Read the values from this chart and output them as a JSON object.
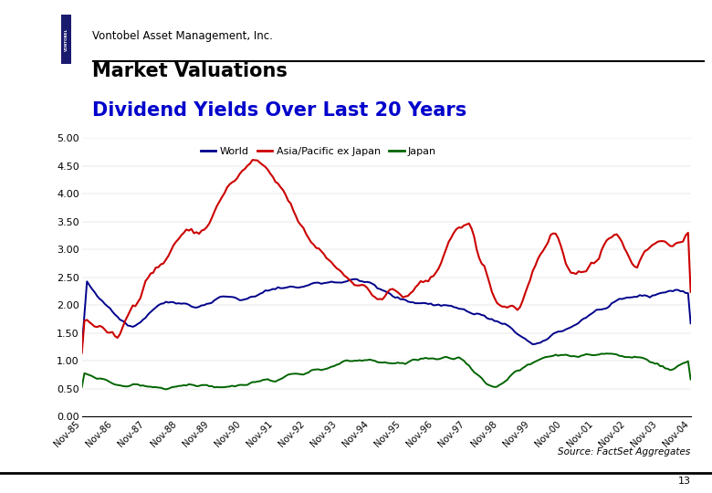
{
  "title_line1": "Market Valuations",
  "title_line2": "Dividend Yields Over Last 20 Years",
  "header_text": "Vontobel Asset Management, Inc.",
  "source_text": "Source: FactSet Aggregates",
  "page_number": "13",
  "legend_labels": [
    "World",
    "Asia/Pacific ex Japan",
    "Japan"
  ],
  "legend_colors": [
    "#00008B",
    "#CC0000",
    "#006400"
  ],
  "line_colors": [
    "#00008B",
    "#CC0000",
    "#006400"
  ],
  "x_labels": [
    "Nov-85",
    "Nov-86",
    "Nov-87",
    "Nov-88",
    "Nov-89",
    "Nov-90",
    "Nov-91",
    "Nov-92",
    "Nov-93",
    "Nov-94",
    "Nov-95",
    "Nov-96",
    "Nov-97",
    "Nov-98",
    "Nov-99",
    "Nov-00",
    "Nov-01",
    "Nov-02",
    "Nov-03",
    "Nov-04"
  ],
  "ylim": [
    0.0,
    5.0
  ],
  "yticks": [
    0.0,
    0.5,
    1.0,
    1.5,
    2.0,
    2.5,
    3.0,
    3.5,
    4.0,
    4.5,
    5.0
  ],
  "background_color": "#FFFFFF",
  "logo_blue": "#1E3A8A",
  "logo_dark_stripe": "#1a1a6e",
  "title_color1": "#000000",
  "title_color2": "#0000CC"
}
